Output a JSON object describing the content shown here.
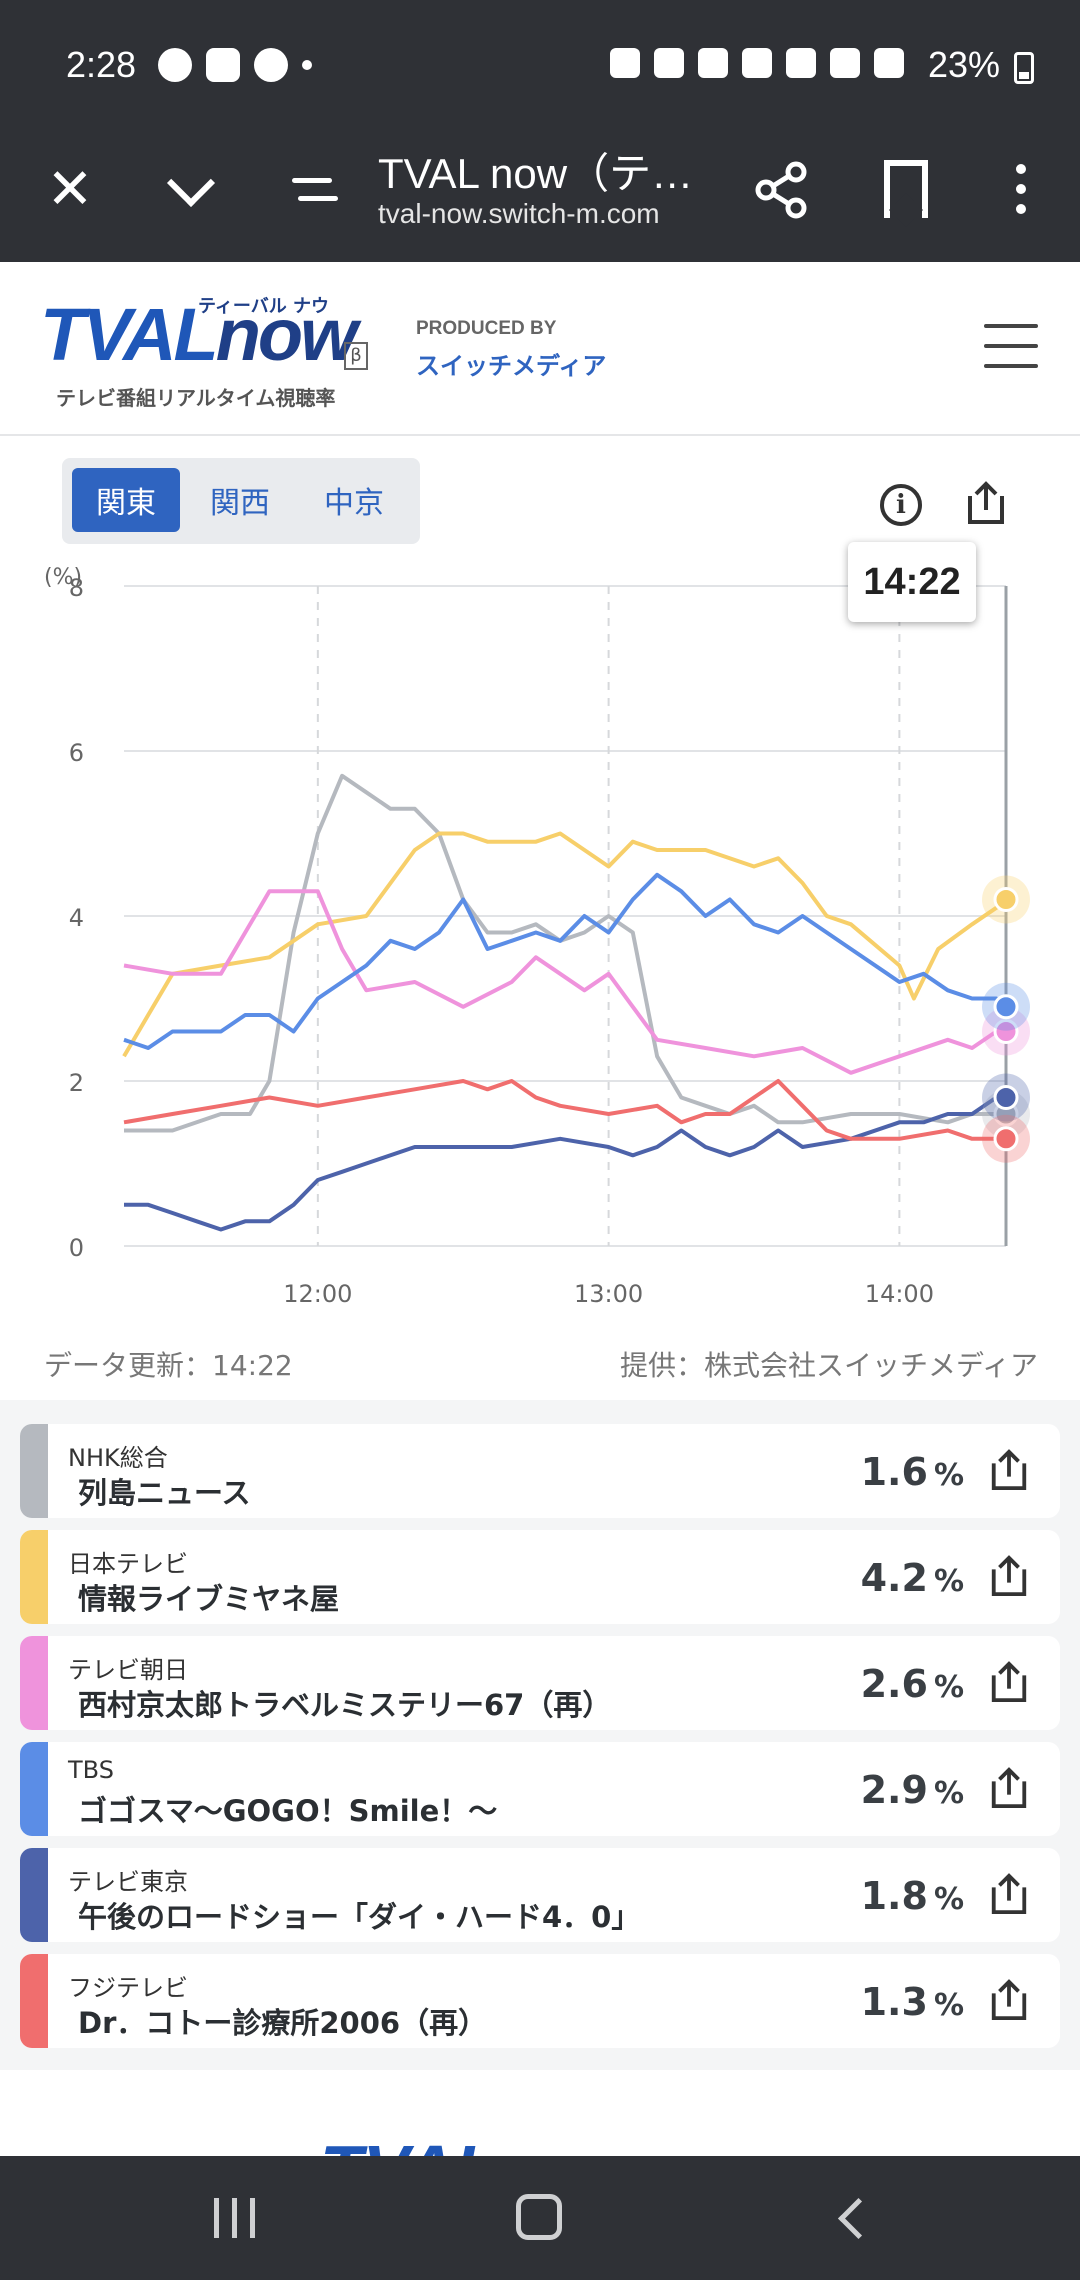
{
  "status_bar": {
    "time": "2:28",
    "battery": "23%"
  },
  "browser": {
    "title": "TVAL now（テ…",
    "url": "tval-now.switch-m.com"
  },
  "header": {
    "logo_main": "TVAL",
    "logo_now": "now",
    "logo_kana": "ティーバル ナウ",
    "logo_beta": "β",
    "logo_sub": "テレビ番組リアルタイム視聴率",
    "produced_by": "PRODUCED BY",
    "company": "スイッチメディア"
  },
  "regions": [
    {
      "label": "関東",
      "active": true
    },
    {
      "label": "関西",
      "active": false
    },
    {
      "label": "中京",
      "active": false
    }
  ],
  "tooltip_time": "14:22",
  "data_updated": "データ更新：14:22",
  "provider": "提供：株式会社スイッチメディア",
  "chart_data": {
    "type": "line",
    "ylabel": "(%)",
    "ylim": [
      0,
      8
    ],
    "yticks": [
      "0",
      "2",
      "4",
      "6",
      "8"
    ],
    "xticks": [
      "12:00",
      "13:00",
      "14:00"
    ],
    "xlim_minutes": [
      680,
      862
    ],
    "cursor_minute": 862,
    "series": [
      {
        "name": "NHK総合",
        "color": "#b5b9bf",
        "x": [
          680,
          690,
          700,
          706,
          710,
          715,
          720,
          725,
          730,
          735,
          740,
          745,
          750,
          755,
          760,
          765,
          770,
          775,
          780,
          785,
          790,
          795,
          800,
          805,
          810,
          815,
          820,
          830,
          840,
          850,
          855,
          860,
          862
        ],
        "y": [
          1.4,
          1.4,
          1.6,
          1.6,
          2.0,
          3.8,
          5.0,
          5.7,
          5.5,
          5.3,
          5.3,
          5.0,
          4.2,
          3.8,
          3.8,
          3.9,
          3.7,
          3.8,
          4.0,
          3.8,
          2.3,
          1.8,
          1.7,
          1.6,
          1.7,
          1.5,
          1.5,
          1.6,
          1.6,
          1.5,
          1.6,
          1.6,
          1.6
        ]
      },
      {
        "name": "日本テレビ",
        "color": "#f7cf6a",
        "x": [
          680,
          685,
          690,
          700,
          710,
          720,
          730,
          740,
          745,
          750,
          755,
          760,
          765,
          770,
          775,
          780,
          785,
          790,
          800,
          810,
          815,
          820,
          825,
          830,
          840,
          843,
          848,
          855,
          860,
          862
        ],
        "y": [
          2.3,
          2.8,
          3.3,
          3.4,
          3.5,
          3.9,
          4.0,
          4.8,
          5.0,
          5.0,
          4.9,
          4.9,
          4.9,
          5.0,
          4.8,
          4.6,
          4.9,
          4.8,
          4.8,
          4.6,
          4.7,
          4.4,
          4.0,
          3.9,
          3.4,
          3.0,
          3.6,
          3.9,
          4.1,
          4.2
        ]
      },
      {
        "name": "テレビ朝日",
        "color": "#ef93dc",
        "x": [
          680,
          690,
          700,
          705,
          710,
          715,
          720,
          725,
          730,
          740,
          750,
          760,
          765,
          770,
          775,
          780,
          785,
          790,
          800,
          810,
          820,
          830,
          840,
          850,
          855,
          860,
          862
        ],
        "y": [
          3.4,
          3.3,
          3.3,
          3.8,
          4.3,
          4.3,
          4.3,
          3.6,
          3.1,
          3.2,
          2.9,
          3.2,
          3.5,
          3.3,
          3.1,
          3.3,
          2.9,
          2.5,
          2.4,
          2.3,
          2.4,
          2.1,
          2.3,
          2.5,
          2.4,
          2.6,
          2.6
        ]
      },
      {
        "name": "TBS",
        "color": "#5b8de6",
        "x": [
          680,
          685,
          690,
          700,
          705,
          710,
          715,
          720,
          725,
          730,
          735,
          740,
          745,
          750,
          755,
          760,
          765,
          770,
          775,
          780,
          785,
          790,
          795,
          800,
          805,
          810,
          815,
          820,
          825,
          830,
          840,
          845,
          850,
          855,
          860,
          862
        ],
        "y": [
          2.5,
          2.4,
          2.6,
          2.6,
          2.8,
          2.8,
          2.6,
          3.0,
          3.2,
          3.4,
          3.7,
          3.6,
          3.8,
          4.2,
          3.6,
          3.7,
          3.8,
          3.7,
          4.0,
          3.8,
          4.2,
          4.5,
          4.3,
          4.0,
          4.2,
          3.9,
          3.8,
          4.0,
          3.8,
          3.6,
          3.2,
          3.3,
          3.1,
          3.0,
          3.0,
          2.9
        ]
      },
      {
        "name": "テレビ東京",
        "color": "#4d63aa",
        "x": [
          680,
          685,
          690,
          695,
          700,
          705,
          710,
          715,
          720,
          725,
          730,
          740,
          750,
          760,
          770,
          780,
          785,
          790,
          795,
          800,
          805,
          810,
          815,
          820,
          830,
          840,
          845,
          850,
          855,
          860,
          862
        ],
        "y": [
          0.5,
          0.5,
          0.4,
          0.3,
          0.2,
          0.3,
          0.3,
          0.5,
          0.8,
          0.9,
          1.0,
          1.2,
          1.2,
          1.2,
          1.3,
          1.2,
          1.1,
          1.2,
          1.4,
          1.2,
          1.1,
          1.2,
          1.4,
          1.2,
          1.3,
          1.5,
          1.5,
          1.6,
          1.6,
          1.8,
          1.8
        ]
      },
      {
        "name": "フジテレビ",
        "color": "#f06e6e",
        "x": [
          680,
          690,
          700,
          710,
          720,
          730,
          740,
          750,
          755,
          760,
          765,
          770,
          780,
          790,
          795,
          800,
          805,
          810,
          815,
          820,
          825,
          830,
          840,
          850,
          855,
          860,
          862
        ],
        "y": [
          1.5,
          1.6,
          1.7,
          1.8,
          1.7,
          1.8,
          1.9,
          2.0,
          1.9,
          2.0,
          1.8,
          1.7,
          1.6,
          1.7,
          1.5,
          1.6,
          1.6,
          1.8,
          2.0,
          1.7,
          1.4,
          1.3,
          1.3,
          1.4,
          1.3,
          1.3,
          1.3
        ]
      }
    ]
  },
  "stations": [
    {
      "station": "NHK総合",
      "program": "列島ニュース",
      "rating": "1.6",
      "unit": "%",
      "color": "#b5b9bf"
    },
    {
      "station": "日本テレビ",
      "program": "情報ライブミヤネ屋",
      "rating": "4.2",
      "unit": "%",
      "color": "#f7cf6a"
    },
    {
      "station": "テレビ朝日",
      "program": "西村京太郎トラベルミステリー67（再）",
      "rating": "2.6",
      "unit": "%",
      "color": "#ef93dc"
    },
    {
      "station": "TBS",
      "program": "ゴゴスマ～GOGO！Smile！～",
      "rating": "2.9",
      "unit": "%",
      "color": "#5b8de6"
    },
    {
      "station": "テレビ東京",
      "program": "午後のロードショー「ダイ・ハード4．0」",
      "rating": "1.8",
      "unit": "%",
      "color": "#4d63aa"
    },
    {
      "station": "フジテレビ",
      "program": "Dr．コトー診療所2006（再）",
      "rating": "1.3",
      "unit": "%",
      "color": "#f06e6e"
    }
  ]
}
